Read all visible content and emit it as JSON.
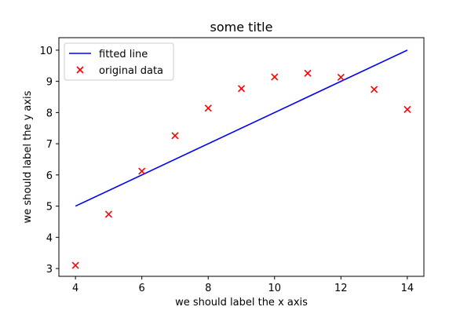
{
  "chart_data": {
    "type": "scatter",
    "title": "some title",
    "xlabel": "we should label the x axis",
    "ylabel": "we should label the y axis",
    "xlim": [
      3.5,
      14.5
    ],
    "ylim": [
      2.75,
      10.4
    ],
    "xticks": [
      4,
      6,
      8,
      10,
      12,
      14
    ],
    "yticks": [
      3,
      4,
      5,
      6,
      7,
      8,
      9,
      10
    ],
    "grid": false,
    "legend_position": "top-left",
    "series": [
      {
        "name": "fitted line",
        "kind": "line",
        "color": "#0000ff",
        "x": [
          4,
          14
        ],
        "y": [
          5,
          10
        ]
      },
      {
        "name": "original data",
        "kind": "scatter",
        "marker": "x",
        "color": "#ff0000",
        "x": [
          4,
          5,
          6,
          7,
          8,
          9,
          10,
          11,
          12,
          13,
          14
        ],
        "y": [
          3.1,
          4.74,
          6.12,
          7.26,
          8.14,
          8.77,
          9.14,
          9.26,
          9.13,
          8.74,
          8.1
        ]
      }
    ]
  }
}
